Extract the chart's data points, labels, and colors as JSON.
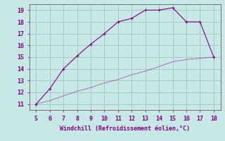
{
  "upper_x": [
    5,
    6,
    7,
    8,
    9,
    10,
    11,
    12,
    13,
    14,
    15,
    16,
    17,
    18
  ],
  "upper_y": [
    11,
    12.3,
    14,
    15.1,
    16.1,
    17,
    18,
    18.3,
    19,
    19,
    19.2,
    18,
    18,
    15
  ],
  "lower_x": [
    5,
    6,
    7,
    8,
    9,
    10,
    11,
    12,
    13,
    14,
    15,
    16,
    17,
    18
  ],
  "lower_y": [
    11,
    11.3,
    11.7,
    12.1,
    12.4,
    12.8,
    13.1,
    13.5,
    13.8,
    14.2,
    14.6,
    14.8,
    14.9,
    15.0
  ],
  "line_color": "#800080",
  "bg_color": "#c8e8e8",
  "grid_color": "#a8c8c8",
  "xlabel": "Windchill (Refroidissement éolien,°C)",
  "xlim": [
    4.5,
    18.5
  ],
  "ylim": [
    10.5,
    19.5
  ],
  "xticks": [
    5,
    6,
    7,
    8,
    9,
    10,
    11,
    12,
    13,
    14,
    15,
    16,
    17,
    18
  ],
  "yticks": [
    11,
    12,
    13,
    14,
    15,
    16,
    17,
    18,
    19
  ],
  "font_color": "#800080",
  "marker": "P",
  "markersize": 2.5,
  "linewidth": 0.8
}
